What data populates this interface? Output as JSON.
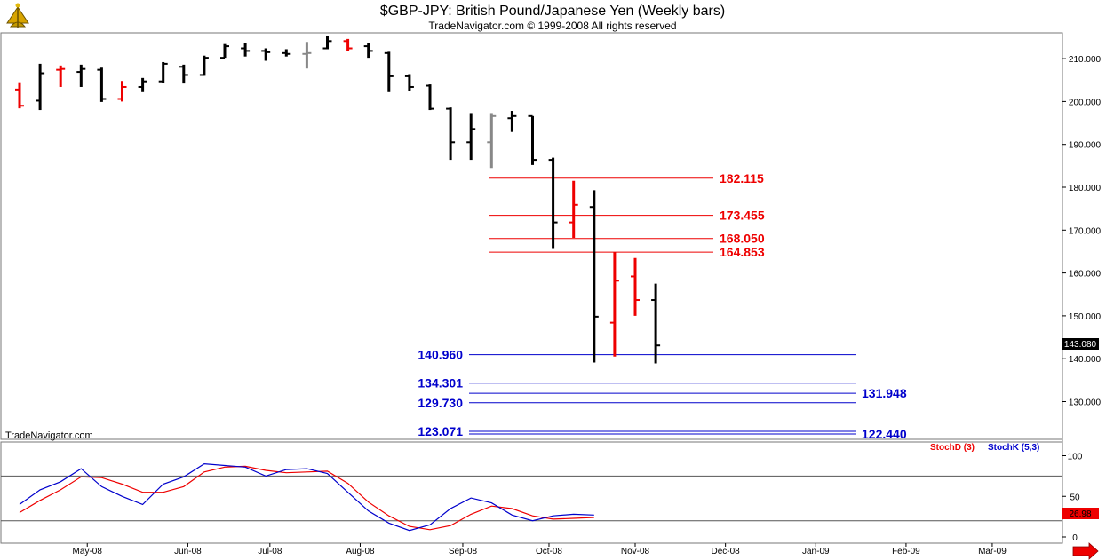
{
  "header": {
    "title": "$GBP-JPY:  British Pound/Japanese Yen  (Weekly bars)",
    "subtitle": "TradeNavigator.com © 1999-2008 All rights reserved"
  },
  "watermark": "TradeNavigator.com",
  "last_price_label": "143.080",
  "colors": {
    "up_bar": "#000000",
    "down_bar": "#ee0000",
    "neutral_bar": "#888888",
    "resistance": "#ee0000",
    "support": "#0000cc",
    "stoch_d": "#ee0000",
    "stoch_k": "#0000cc",
    "last_price_bg": "#000000",
    "stoch_value_bg": "#ee0000"
  },
  "chart_data": [
    {
      "type": "ohlc",
      "title": "$GBP-JPY:  British Pound/Japanese Yen  (Weekly bars)",
      "ylim": [
        120,
        215
      ],
      "y_ticks": [
        "210.000",
        "200.000",
        "190.000",
        "180.000",
        "170.000",
        "160.000",
        "150.000",
        "140.000",
        "130.000"
      ],
      "y_tick_values": [
        210,
        200,
        190,
        180,
        170,
        160,
        150,
        140,
        130
      ],
      "x_tick_labels": [
        "May-08",
        "Jun-08",
        "Jul-08",
        "Aug-08",
        "Sep-08",
        "Oct-08",
        "Nov-08",
        "Dec-08",
        "Jan-09",
        "Feb-09",
        "Mar-09"
      ],
      "x_tick_weeks": [
        3.3,
        8.2,
        12.2,
        16.6,
        21.6,
        25.8,
        30.0,
        34.4,
        38.8,
        43.2,
        47.4
      ],
      "bars": [
        {
          "week": 0,
          "open": 202.8,
          "high": 204.5,
          "low": 198.4,
          "close": 199.0,
          "color": "down"
        },
        {
          "week": 1,
          "open": 200.2,
          "high": 208.8,
          "low": 198.0,
          "close": 206.6,
          "color": "up"
        },
        {
          "week": 2,
          "open": 207.4,
          "high": 208.4,
          "low": 203.4,
          "close": 207.6,
          "color": "down"
        },
        {
          "week": 3,
          "open": 206.9,
          "high": 208.6,
          "low": 203.4,
          "close": 207.6,
          "color": "up"
        },
        {
          "week": 4,
          "open": 207.4,
          "high": 207.9,
          "low": 199.9,
          "close": 200.6,
          "color": "up"
        },
        {
          "week": 5,
          "open": 200.6,
          "high": 204.8,
          "low": 200.0,
          "close": 203.4,
          "color": "down"
        },
        {
          "week": 6,
          "open": 203.4,
          "high": 205.5,
          "low": 202.2,
          "close": 204.7,
          "color": "up"
        },
        {
          "week": 7,
          "open": 204.7,
          "high": 209.2,
          "low": 204.4,
          "close": 208.8,
          "color": "up"
        },
        {
          "week": 8,
          "open": 208.1,
          "high": 208.6,
          "low": 204.2,
          "close": 206.2,
          "color": "up"
        },
        {
          "week": 9,
          "open": 206.2,
          "high": 210.7,
          "low": 206.0,
          "close": 210.2,
          "color": "up"
        },
        {
          "week": 10,
          "open": 210.2,
          "high": 213.4,
          "low": 210.2,
          "close": 212.9,
          "color": "up"
        },
        {
          "week": 11,
          "open": 212.4,
          "high": 213.6,
          "low": 210.5,
          "close": 211.8,
          "color": "up"
        },
        {
          "week": 12,
          "open": 211.8,
          "high": 212.4,
          "low": 209.5,
          "close": 211.5,
          "color": "up"
        },
        {
          "week": 13,
          "open": 211.3,
          "high": 212.2,
          "low": 210.5,
          "close": 211.1,
          "color": "up"
        },
        {
          "week": 14,
          "open": 211.1,
          "high": 213.9,
          "low": 207.7,
          "close": 211.3,
          "color": "neutral"
        },
        {
          "week": 15,
          "open": 212.4,
          "high": 215.2,
          "low": 212.2,
          "close": 214.1,
          "color": "up"
        },
        {
          "week": 16,
          "open": 214.1,
          "high": 214.6,
          "low": 211.8,
          "close": 212.4,
          "color": "down"
        },
        {
          "week": 17,
          "open": 212.9,
          "high": 213.6,
          "low": 210.2,
          "close": 211.8,
          "color": "up"
        },
        {
          "week": 18,
          "open": 211.3,
          "high": 211.6,
          "low": 202.2,
          "close": 205.9,
          "color": "up"
        },
        {
          "week": 19,
          "open": 205.9,
          "high": 206.4,
          "low": 202.4,
          "close": 203.4,
          "color": "up"
        },
        {
          "week": 20,
          "open": 203.7,
          "high": 204.0,
          "low": 198.0,
          "close": 198.3,
          "color": "up"
        },
        {
          "week": 21,
          "open": 198.3,
          "high": 198.6,
          "low": 186.4,
          "close": 190.5,
          "color": "up"
        },
        {
          "week": 22,
          "open": 190.5,
          "high": 197.3,
          "low": 186.4,
          "close": 193.6,
          "color": "up"
        },
        {
          "week": 23,
          "open": 190.5,
          "high": 197.3,
          "low": 184.5,
          "close": 196.6,
          "color": "neutral"
        },
        {
          "week": 24,
          "open": 196.1,
          "high": 197.8,
          "low": 192.9,
          "close": 196.6,
          "color": "up"
        },
        {
          "week": 25,
          "open": 196.6,
          "high": 196.6,
          "low": 185.2,
          "close": 186.4,
          "color": "up"
        },
        {
          "week": 26,
          "open": 186.4,
          "high": 186.9,
          "low": 165.6,
          "close": 171.8,
          "color": "up"
        },
        {
          "week": 27,
          "open": 171.8,
          "high": 181.5,
          "low": 168.2,
          "close": 175.9,
          "color": "down"
        },
        {
          "week": 28,
          "open": 175.4,
          "high": 179.3,
          "low": 139.1,
          "close": 149.8,
          "color": "up"
        },
        {
          "week": 29,
          "open": 148.4,
          "high": 164.8,
          "low": 140.5,
          "close": 158.2,
          "color": "down"
        },
        {
          "week": 30,
          "open": 159.2,
          "high": 163.5,
          "low": 150.0,
          "close": 153.7,
          "color": "down"
        },
        {
          "week": 31,
          "open": 153.7,
          "high": 157.5,
          "low": 138.9,
          "close": 143.1,
          "color": "up"
        }
      ],
      "resistance_levels": [
        182.115,
        173.455,
        168.05,
        164.853
      ],
      "resistance_labels": [
        "182.115",
        "173.455",
        "168.050",
        "164.853"
      ],
      "support_levels_left": [
        140.96,
        134.301,
        129.73,
        123.071
      ],
      "support_labels_left": [
        "140.960",
        "134.301",
        "129.730",
        "123.071"
      ],
      "support_levels_right": [
        131.948,
        122.44
      ],
      "support_labels_right": [
        "131.948",
        "122.440"
      ]
    },
    {
      "type": "line",
      "ylim": [
        -5,
        115
      ],
      "y_ticks": [
        "100",
        "50",
        "0"
      ],
      "y_tick_values": [
        100,
        50,
        0
      ],
      "reference_lines": [
        75,
        20
      ],
      "series": [
        {
          "name": "StochD (3)",
          "values": [
            30,
            45,
            58,
            74,
            73,
            65,
            55,
            55,
            62,
            80,
            86,
            87,
            82,
            79,
            80,
            81,
            66,
            43,
            26,
            13,
            9,
            14,
            28,
            38,
            35,
            26,
            22,
            23,
            24
          ]
        },
        {
          "name": "StochK (5,3)",
          "values": [
            40,
            58,
            68,
            84,
            62,
            50,
            40,
            65,
            74,
            90,
            88,
            86,
            75,
            83,
            84,
            78,
            55,
            32,
            17,
            8,
            15,
            35,
            48,
            42,
            27,
            20,
            26,
            28,
            27
          ]
        }
      ],
      "last_value_label": "26.98"
    }
  ]
}
